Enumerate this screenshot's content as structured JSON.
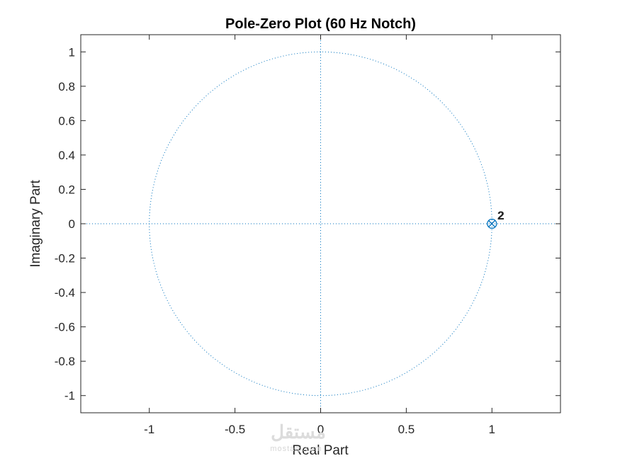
{
  "window": {
    "background": "#ffffff"
  },
  "chart_data": {
    "type": "scatter",
    "title": "Pole-Zero Plot (60 Hz Notch)",
    "xlabel": "Real Part",
    "ylabel": "Imaginary Part",
    "xlim": [
      -1.4,
      1.4
    ],
    "ylim": [
      -1.1,
      1.1
    ],
    "xticks": [
      -1,
      -0.5,
      0,
      0.5,
      1
    ],
    "xtick_labels": [
      "-1",
      "-0.5",
      "0",
      "0.5",
      "1"
    ],
    "yticks": [
      1,
      0.8,
      0.6,
      0.4,
      0.2,
      0,
      -0.2,
      -0.4,
      -0.6,
      -0.8,
      -1
    ],
    "ytick_labels": [
      "1",
      "0.8",
      "0.6",
      "0.4",
      "0.2",
      "0",
      "-0.2",
      "-0.4",
      "-0.6",
      "-0.8",
      "-1"
    ],
    "grid": false,
    "unit_circle": true,
    "reference_axes": true,
    "series": [
      {
        "marker": "circle",
        "points": [
          [
            1.0,
            0.0
          ]
        ],
        "multiplicity": "2",
        "color": "#0072bd"
      },
      {
        "marker": "x",
        "points": [
          [
            0.999,
            0.0
          ]
        ],
        "multiplicity": "2",
        "color": "#0072bd"
      }
    ],
    "colors": {
      "axis": "#262626",
      "guide": "#0072bd",
      "marker": "#0072bd"
    }
  },
  "watermark": {
    "text": "مستقل",
    "subtext": "mostaql.com"
  }
}
